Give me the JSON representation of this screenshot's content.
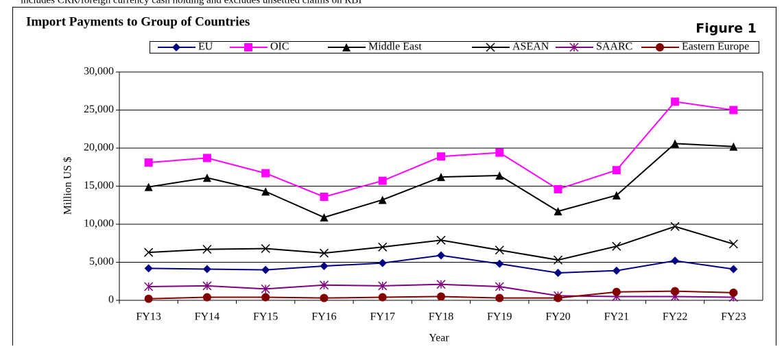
{
  "note": "includes CRR/foreign currency cash holding and excludes unsettled claims on RBI",
  "figure_label": "Figure 1",
  "chart_data": {
    "type": "line",
    "title": "Import Payments to Group of Countries",
    "x_label": "Year",
    "y_label": "Million US $",
    "categories": [
      "FY13",
      "FY14",
      "FY15",
      "FY16",
      "FY17",
      "FY18",
      "FY19",
      "FY20",
      "FY21",
      "FY22",
      "FY23"
    ],
    "series": [
      {
        "name": "EU",
        "color": "#000080",
        "marker": "diamond",
        "values": [
          4200,
          4100,
          4000,
          4500,
          4900,
          5900,
          4800,
          3600,
          3900,
          5200,
          4100
        ]
      },
      {
        "name": "OIC",
        "color": "#ff00ff",
        "marker": "square",
        "values": [
          18100,
          18700,
          16700,
          13600,
          15700,
          18900,
          19400,
          14600,
          17100,
          26100,
          25000
        ]
      },
      {
        "name": "Middle East",
        "color": "#000000",
        "marker": "triangle",
        "values": [
          14900,
          16100,
          14300,
          10900,
          13200,
          16200,
          16400,
          11700,
          13800,
          20600,
          20200
        ]
      },
      {
        "name": "ASEAN",
        "color": "#000000",
        "marker": "x",
        "values": [
          6300,
          6700,
          6800,
          6200,
          7000,
          7900,
          6600,
          5300,
          7100,
          9700,
          7400
        ]
      },
      {
        "name": "SAARC",
        "color": "#800080",
        "marker": "star",
        "values": [
          1800,
          1900,
          1500,
          2000,
          1900,
          2100,
          1800,
          600,
          500,
          500,
          400
        ]
      },
      {
        "name": "Eastern Europe",
        "color": "#800000",
        "marker": "circle",
        "values": [
          200,
          400,
          400,
          300,
          400,
          500,
          300,
          300,
          1100,
          1200,
          1000
        ]
      }
    ],
    "ylim": [
      0,
      30000
    ],
    "yticks": [
      0,
      {
        "value": 5000,
        "label": "5,000"
      },
      {
        "value": 10000,
        "label": "10,000"
      },
      {
        "value": 15000,
        "label": "15,000"
      },
      {
        "value": 20000,
        "label": "20,000"
      },
      {
        "value": 25000,
        "label": "25,000"
      },
      {
        "value": 30000,
        "label": "30,000"
      }
    ],
    "grid": true,
    "legend": "top"
  }
}
